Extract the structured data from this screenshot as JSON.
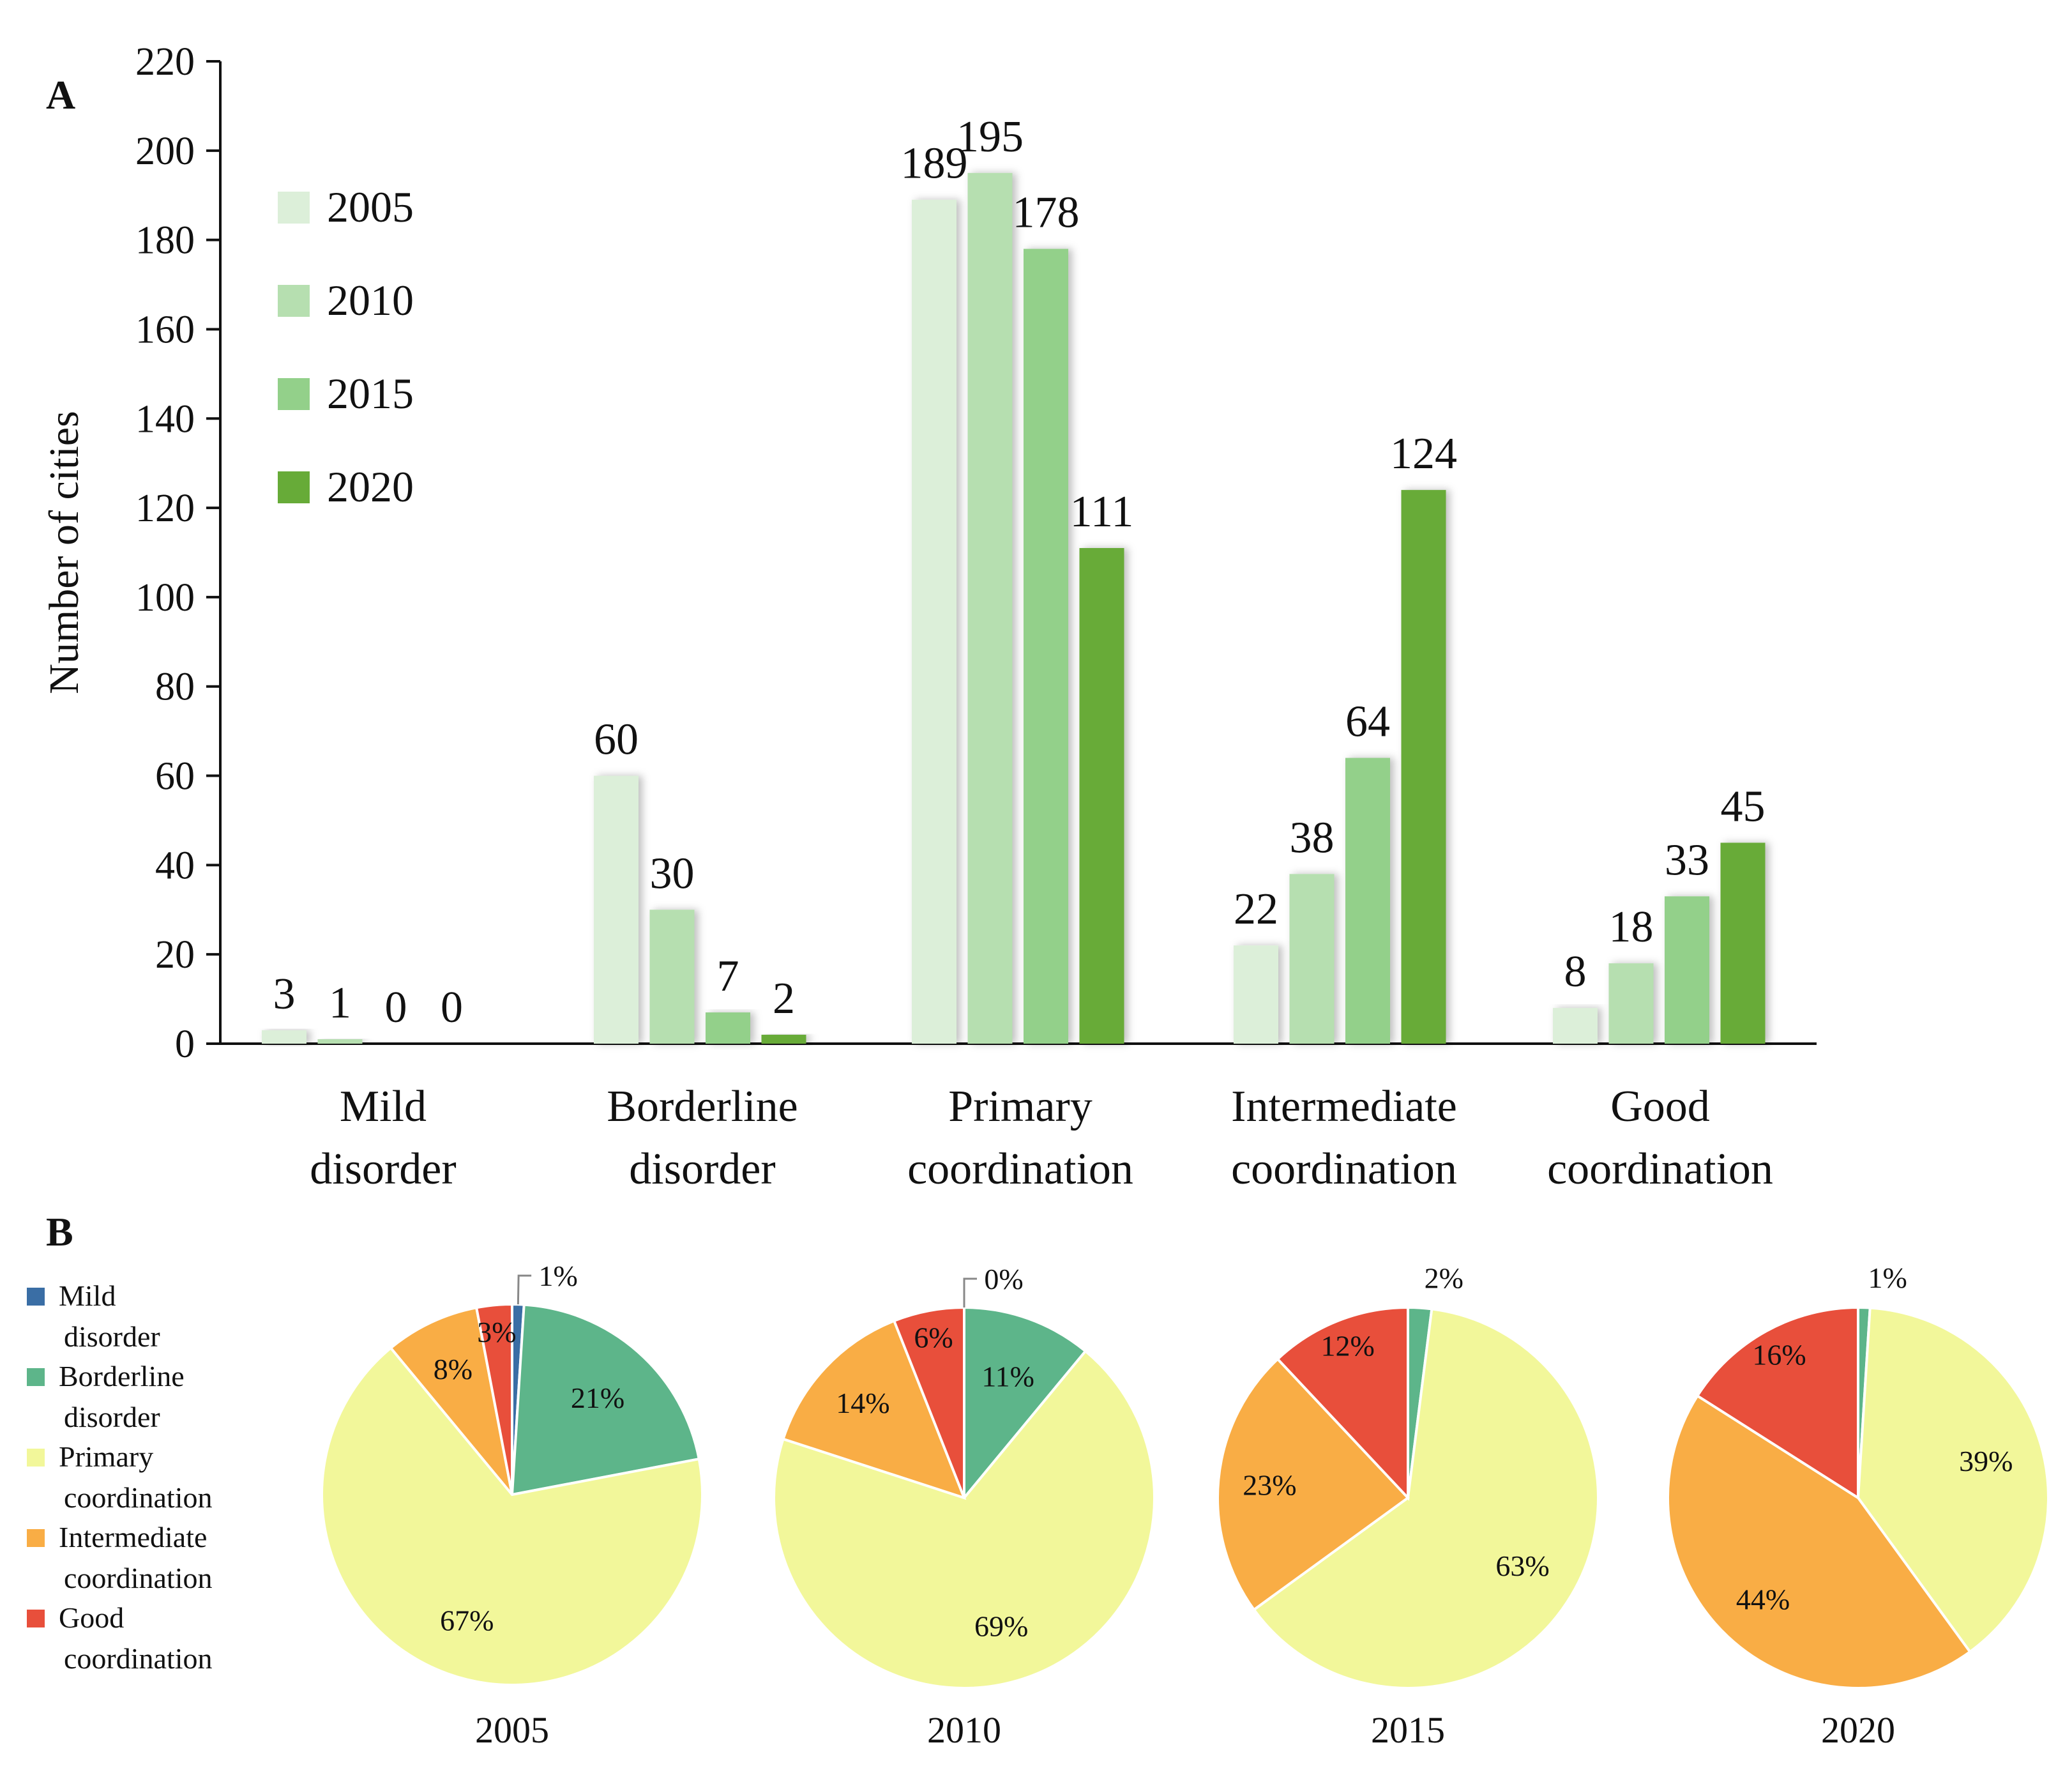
{
  "chart_data": [
    {
      "panel": "A",
      "type": "bar",
      "ylabel": "Number of cities",
      "xlabel": "",
      "ylim": [
        0,
        220
      ],
      "yticks": [
        0,
        20,
        40,
        60,
        80,
        100,
        120,
        140,
        160,
        180,
        200,
        220
      ],
      "categories": [
        [
          "Mild",
          "disorder"
        ],
        [
          "Borderline",
          "disorder"
        ],
        [
          "Primary",
          "coordination"
        ],
        [
          "Intermediate",
          "coordination"
        ],
        [
          "Good",
          "coordination"
        ]
      ],
      "series": [
        {
          "name": "2005",
          "color": "#dcefd9",
          "values": [
            3,
            60,
            189,
            22,
            8
          ]
        },
        {
          "name": "2010",
          "color": "#b6dfb0",
          "values": [
            1,
            30,
            195,
            38,
            18
          ]
        },
        {
          "name": "2015",
          "color": "#93d08a",
          "values": [
            0,
            7,
            178,
            64,
            33
          ]
        },
        {
          "name": "2020",
          "color": "#67ab38",
          "values": [
            0,
            2,
            111,
            124,
            45
          ]
        }
      ],
      "legend": "top-left"
    },
    {
      "panel": "B",
      "type": "pie",
      "categories": [
        {
          "lines": [
            "Mild",
            "disorder"
          ],
          "color": "#3a6ea5"
        },
        {
          "lines": [
            "Borderline",
            "disorder"
          ],
          "color": "#5db58a"
        },
        {
          "lines": [
            "Primary",
            "coordination"
          ],
          "color": "#f2f79a"
        },
        {
          "lines": [
            "Intermediate",
            "coordination"
          ],
          "color": "#f9ad45"
        },
        {
          "lines": [
            "Good",
            "coordination"
          ],
          "color": "#e84f3b"
        }
      ],
      "pies": [
        {
          "year": "2005",
          "values": [
            1,
            21,
            67,
            8,
            3
          ],
          "labels": [
            "1%",
            "21%",
            "67%",
            "8%",
            "3%"
          ]
        },
        {
          "year": "2010",
          "values": [
            0,
            11,
            69,
            14,
            6
          ],
          "labels": [
            "0%",
            "11%",
            "69%",
            "14%",
            "6%"
          ]
        },
        {
          "year": "2015",
          "values": [
            0,
            2,
            63,
            23,
            12
          ],
          "labels": [
            "",
            "2%",
            "63%",
            "23%",
            "12%"
          ]
        },
        {
          "year": "2020",
          "values": [
            0,
            1,
            39,
            44,
            16
          ],
          "labels": [
            "",
            "1%",
            "39%",
            "44%",
            "16%"
          ]
        }
      ]
    }
  ]
}
